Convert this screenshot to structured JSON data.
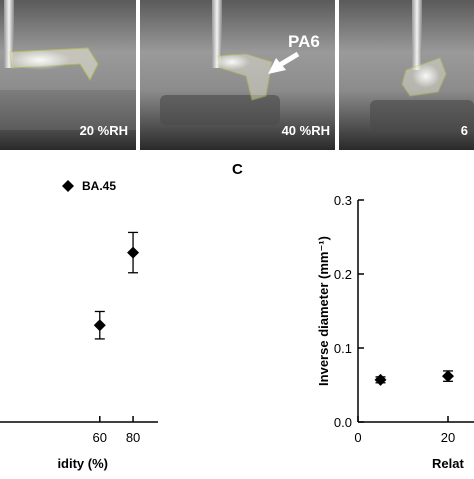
{
  "panels": [
    {
      "caption": "20 %RH"
    },
    {
      "caption": "40 %RH",
      "arrow_label": "PA6"
    },
    {
      "caption": "6"
    }
  ],
  "panel_letters": {
    "c": "C"
  },
  "colors": {
    "film_outline": "#c8d23a",
    "photo_bg": "#7a7a7a",
    "ink": "#000000"
  },
  "chart_data": [
    {
      "type": "scatter",
      "title": "",
      "xlabel": "idity (%)",
      "ylabel": "",
      "xlim": [
        0,
        95
      ],
      "ylim": [
        0,
        0.3
      ],
      "x_ticks": [
        60,
        80
      ],
      "legend": {
        "position": "top-right",
        "marker": "diamond"
      },
      "series": [
        {
          "name": "BA.45",
          "x": [
            60,
            80
          ],
          "y": [
            0.12,
            0.21
          ],
          "err": [
            0.017,
            0.025
          ]
        }
      ]
    },
    {
      "type": "scatter",
      "title": "",
      "xlabel": "Relat",
      "ylabel": "Inverse diameter (mm⁻¹)",
      "xlim": [
        0,
        40
      ],
      "ylim": [
        0,
        0.3
      ],
      "x_ticks": [
        0,
        20
      ],
      "y_ticks": [
        0.0,
        0.1,
        0.2,
        0.3
      ],
      "series": [
        {
          "x": [
            5,
            20
          ],
          "y": [
            0.057,
            0.062
          ],
          "err": [
            0.004,
            0.007
          ]
        }
      ]
    }
  ]
}
